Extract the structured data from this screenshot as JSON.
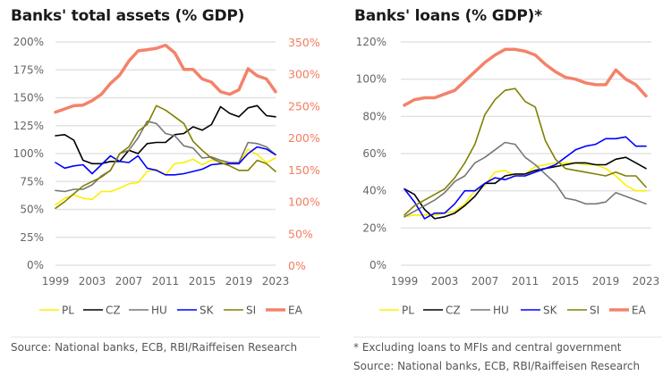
{
  "chart_data": [
    {
      "type": "line",
      "title": "Banks' total assets (% GDP)",
      "xlabel": "",
      "ylabel": "",
      "x": [
        1999,
        2000,
        2001,
        2002,
        2003,
        2004,
        2005,
        2006,
        2007,
        2008,
        2009,
        2010,
        2011,
        2012,
        2013,
        2014,
        2015,
        2016,
        2017,
        2018,
        2019,
        2020,
        2021,
        2022,
        2023
      ],
      "x_ticks": [
        "1999",
        "2003",
        "2007",
        "2011",
        "2015",
        "2019",
        "2023"
      ],
      "y_ticks_left": [
        "0%",
        "25%",
        "50%",
        "75%",
        "100%",
        "125%",
        "150%",
        "175%",
        "200%"
      ],
      "y_ticks_right": [
        "0%",
        "50%",
        "100%",
        "150%",
        "200%",
        "250%",
        "300%",
        "350%"
      ],
      "ylim": [
        0,
        200
      ],
      "ylim_right": [
        0,
        350
      ],
      "grid": true,
      "legend": "bottom",
      "series": [
        {
          "name": "PL",
          "axis": "left",
          "color": "#ffee00",
          "values": [
            54,
            60,
            63,
            60,
            59,
            66,
            66,
            69,
            73,
            74,
            84,
            86,
            81,
            91,
            92,
            95,
            90,
            94,
            93,
            92,
            91,
            104,
            99,
            92,
            96
          ]
        },
        {
          "name": "CZ",
          "axis": "left",
          "color": "#000000",
          "values": [
            116,
            117,
            112,
            94,
            91,
            91,
            93,
            93,
            103,
            100,
            109,
            110,
            110,
            117,
            118,
            124,
            121,
            126,
            142,
            136,
            133,
            141,
            143,
            134,
            133
          ]
        },
        {
          "name": "HU",
          "axis": "left",
          "color": "#777777",
          "values": [
            67,
            66,
            68,
            68,
            72,
            80,
            85,
            100,
            103,
            114,
            129,
            127,
            118,
            116,
            107,
            105,
            96,
            97,
            94,
            92,
            92,
            110,
            109,
            106,
            99
          ]
        },
        {
          "name": "SK",
          "axis": "left",
          "color": "#0000ff",
          "values": [
            92,
            87,
            89,
            90,
            82,
            90,
            98,
            93,
            92,
            98,
            87,
            85,
            81,
            81,
            82,
            84,
            86,
            90,
            91,
            91,
            91,
            100,
            106,
            104,
            99
          ]
        },
        {
          "name": "SI",
          "axis": "left",
          "color": "#808000",
          "values": [
            51,
            57,
            64,
            71,
            75,
            79,
            85,
            100,
            106,
            120,
            126,
            143,
            139,
            133,
            127,
            111,
            103,
            96,
            92,
            89,
            85,
            85,
            94,
            91,
            84
          ]
        },
        {
          "name": "EA",
          "axis": "right",
          "color": "#f4826a",
          "values": [
            240,
            245,
            250,
            251,
            258,
            268,
            285,
            298,
            320,
            336,
            338,
            340,
            345,
            333,
            307,
            307,
            292,
            287,
            272,
            268,
            275,
            308,
            297,
            292,
            272
          ]
        }
      ]
    },
    {
      "type": "line",
      "title": "Banks' loans (% GDP)*",
      "xlabel": "",
      "ylabel": "",
      "x": [
        1999,
        2000,
        2001,
        2002,
        2003,
        2004,
        2005,
        2006,
        2007,
        2008,
        2009,
        2010,
        2011,
        2012,
        2013,
        2014,
        2015,
        2016,
        2017,
        2018,
        2019,
        2020,
        2021,
        2022,
        2023
      ],
      "x_ticks": [
        "1999",
        "2003",
        "2007",
        "2011",
        "2015",
        "2019",
        "2023"
      ],
      "y_ticks_left": [
        "0%",
        "20%",
        "40%",
        "60%",
        "80%",
        "100%",
        "120%"
      ],
      "ylim": [
        0,
        120
      ],
      "grid": true,
      "legend": "bottom",
      "series": [
        {
          "name": "PL",
          "color": "#ffee00",
          "values": [
            26,
            27,
            27,
            27,
            28,
            29,
            33,
            40,
            43,
            50,
            51,
            48,
            49,
            53,
            54,
            55,
            55,
            55,
            54,
            54,
            52,
            48,
            43,
            40,
            40
          ]
        },
        {
          "name": "CZ",
          "color": "#000000",
          "values": [
            41,
            38,
            30,
            25,
            26,
            28,
            32,
            37,
            44,
            44,
            48,
            49,
            49,
            51,
            52,
            53,
            54,
            55,
            55,
            54,
            54,
            57,
            58,
            55,
            52
          ]
        },
        {
          "name": "HU",
          "color": "#777777",
          "values": [
            26,
            29,
            32,
            35,
            39,
            45,
            48,
            55,
            58,
            62,
            66,
            65,
            58,
            54,
            49,
            44,
            36,
            35,
            33,
            33,
            34,
            39,
            37,
            35,
            33
          ]
        },
        {
          "name": "SK",
          "color": "#0000ff",
          "values": [
            41,
            34,
            25,
            28,
            28,
            33,
            40,
            40,
            44,
            47,
            46,
            48,
            48,
            50,
            52,
            54,
            58,
            62,
            64,
            65,
            68,
            68,
            69,
            64,
            64
          ]
        },
        {
          "name": "SI",
          "color": "#808000",
          "values": [
            27,
            32,
            35,
            38,
            41,
            47,
            55,
            65,
            81,
            89,
            94,
            95,
            88,
            85,
            67,
            57,
            52,
            51,
            50,
            49,
            48,
            50,
            48,
            48,
            42
          ]
        },
        {
          "name": "EA",
          "color": "#f4826a",
          "values": [
            86,
            89,
            90,
            90,
            92,
            94,
            99,
            104,
            109,
            113,
            116,
            116,
            115,
            113,
            108,
            104,
            101,
            100,
            98,
            97,
            97,
            105,
            100,
            97,
            91
          ]
        }
      ]
    }
  ],
  "legend_labels": [
    "PL",
    "CZ",
    "HU",
    "SK",
    "SI",
    "EA"
  ],
  "legend_colors": [
    "#ffee00",
    "#000000",
    "#777777",
    "#0000ff",
    "#808000",
    "#f4826a"
  ],
  "footnotes": {
    "left_source": "Source: National banks, ECB, RBI/Raiffeisen Research",
    "right_note": "* Excluding loans to MFIs and central government",
    "right_source": "Source: National banks, ECB, RBI/Raiffeisen Research"
  }
}
